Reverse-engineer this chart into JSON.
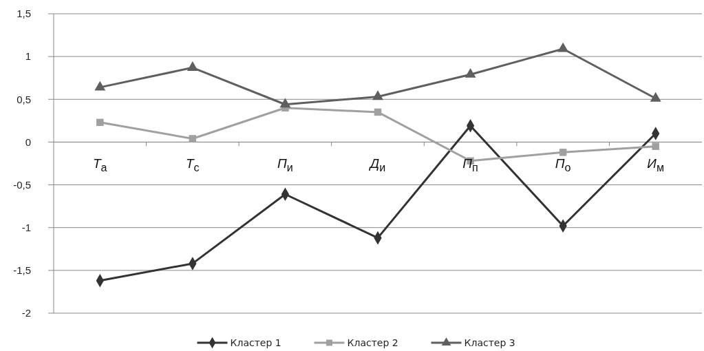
{
  "chart_data": {
    "type": "line",
    "categories": [
      "Т$_{а}$",
      "Т$_{с}$",
      "П$_{и}$",
      "Д$_{и}$",
      "П$_{п}$",
      "П$_{о}$",
      "И$_{м}$"
    ],
    "series": [
      {
        "name": "Кластер 1",
        "color": "#333333",
        "marker": "diamond",
        "values": [
          -1.62,
          -1.42,
          -0.61,
          -1.12,
          0.19,
          -0.98,
          0.1
        ]
      },
      {
        "name": "Кластер 2",
        "color": "#a0a0a0",
        "marker": "square",
        "values": [
          0.23,
          0.04,
          0.4,
          0.35,
          -0.22,
          -0.12,
          -0.05
        ]
      },
      {
        "name": "Кластер 3",
        "color": "#5f5f5f",
        "marker": "triangle",
        "values": [
          0.64,
          0.87,
          0.44,
          0.53,
          0.79,
          1.09,
          0.51
        ]
      }
    ],
    "ylim": [
      -2,
      1.5
    ],
    "yticks": [
      {
        "value": -2,
        "label": "-2"
      },
      {
        "value": -1.5,
        "label": "-1,5"
      },
      {
        "value": -1,
        "label": "-1"
      },
      {
        "value": -0.5,
        "label": "-0,5"
      },
      {
        "value": 0,
        "label": "0"
      },
      {
        "value": 0.5,
        "label": "0,5"
      },
      {
        "value": 1,
        "label": "1"
      },
      {
        "value": 1.5,
        "label": "1,5"
      }
    ],
    "grid": "y",
    "legend": "bottom",
    "line_style": "solid"
  }
}
